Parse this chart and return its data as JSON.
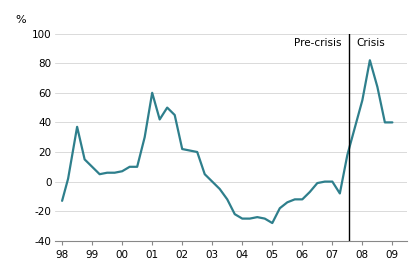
{
  "title": "",
  "ylabel": "%",
  "ylim": [
    -40,
    100
  ],
  "yticks": [
    -40,
    -20,
    0,
    20,
    40,
    60,
    80,
    100
  ],
  "xlim": [
    1997.75,
    2009.5
  ],
  "xticks": [
    1998,
    1999,
    2000,
    2001,
    2002,
    2003,
    2004,
    2005,
    2006,
    2007,
    2008,
    2009
  ],
  "xticklabels": [
    "98",
    "99",
    "00",
    "01",
    "02",
    "03",
    "04",
    "05",
    "06",
    "07",
    "08",
    "09"
  ],
  "vline_x": 2007.55,
  "pre_crisis_label": "Pre-crisis",
  "pre_crisis_x": 2007.3,
  "pre_crisis_y": 97,
  "crisis_label": "Crisis",
  "crisis_x": 2007.8,
  "crisis_y": 97,
  "line_color": "#2e7f8c",
  "line_width": 1.6,
  "background_color": "#ffffff",
  "x": [
    1998.0,
    1998.2,
    1998.5,
    1998.75,
    1999.0,
    1999.25,
    1999.5,
    1999.75,
    2000.0,
    2000.25,
    2000.5,
    2000.75,
    2001.0,
    2001.25,
    2001.5,
    2001.75,
    2002.0,
    2002.25,
    2002.5,
    2002.75,
    2003.0,
    2003.25,
    2003.5,
    2003.75,
    2004.0,
    2004.25,
    2004.5,
    2004.75,
    2005.0,
    2005.25,
    2005.5,
    2005.75,
    2006.0,
    2006.25,
    2006.5,
    2006.75,
    2007.0,
    2007.25,
    2007.5,
    2008.0,
    2008.25,
    2008.5,
    2008.75,
    2009.0
  ],
  "y": [
    -13,
    2,
    37,
    15,
    10,
    5,
    6,
    6,
    7,
    10,
    10,
    30,
    60,
    42,
    50,
    45,
    22,
    21,
    20,
    5,
    0,
    -5,
    -12,
    -22,
    -25,
    -25,
    -24,
    -25,
    -28,
    -18,
    -14,
    -12,
    -12,
    -7,
    -1,
    0,
    0,
    -8,
    18,
    55,
    82,
    64,
    40,
    40
  ]
}
